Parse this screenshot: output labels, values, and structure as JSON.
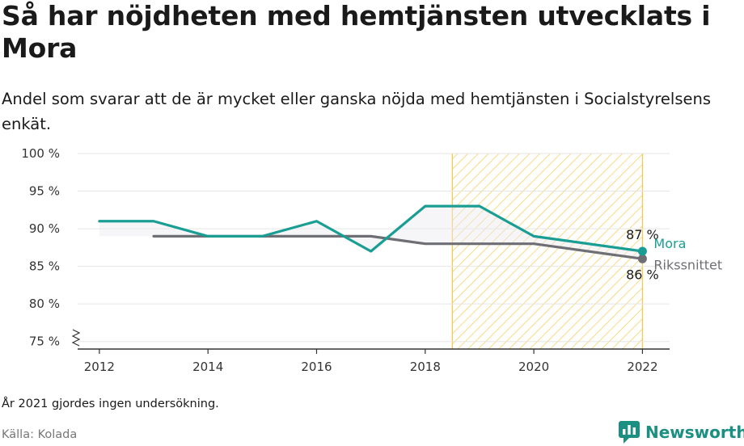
{
  "title": "Så har nöjdheten med hemtjänsten utvecklats i Mora",
  "subtitle": "Andel som svarar att de är mycket eller ganska nöjda med hemtjänsten i Socialstyrelsens enkät.",
  "footnote": "År 2021 gjordes ingen undersökning.",
  "source": "Källa: Kolada",
  "brand": "Newsworthy",
  "colors": {
    "mora": "#1a9e94",
    "riks": "#6e6e75",
    "hatch": "#f7c94e",
    "grid": "#e5e5e5"
  },
  "chart_data": {
    "type": "line",
    "xlim": [
      2011.6,
      2022.5
    ],
    "ylim": [
      74,
      100
    ],
    "yticks": [
      75,
      80,
      85,
      90,
      95,
      100
    ],
    "ytick_labels": [
      "75 %",
      "80 %",
      "85 %",
      "90 %",
      "95 %",
      "100 %"
    ],
    "xticks": [
      2012,
      2014,
      2016,
      2018,
      2020,
      2022
    ],
    "xtick_labels": [
      "2012",
      "2014",
      "2016",
      "2018",
      "2020",
      "2022"
    ],
    "highlight_range": [
      2018.5,
      2022
    ],
    "series": [
      {
        "name": "Mora",
        "color": "#1a9e94",
        "x": [
          2012,
          2013,
          2014,
          2015,
          2016,
          2017,
          2018,
          2019,
          2020,
          2022
        ],
        "values": [
          91,
          91,
          89,
          89,
          91,
          87,
          93,
          93,
          89,
          87
        ],
        "end_label": "87 %"
      },
      {
        "name": "Rikssnittet",
        "color": "#6e6e75",
        "x": [
          2013,
          2014,
          2015,
          2016,
          2017,
          2018,
          2019,
          2020,
          2022
        ],
        "values": [
          89,
          89,
          89,
          89,
          89,
          88,
          88,
          88,
          86
        ],
        "end_label": "86 %"
      }
    ]
  }
}
